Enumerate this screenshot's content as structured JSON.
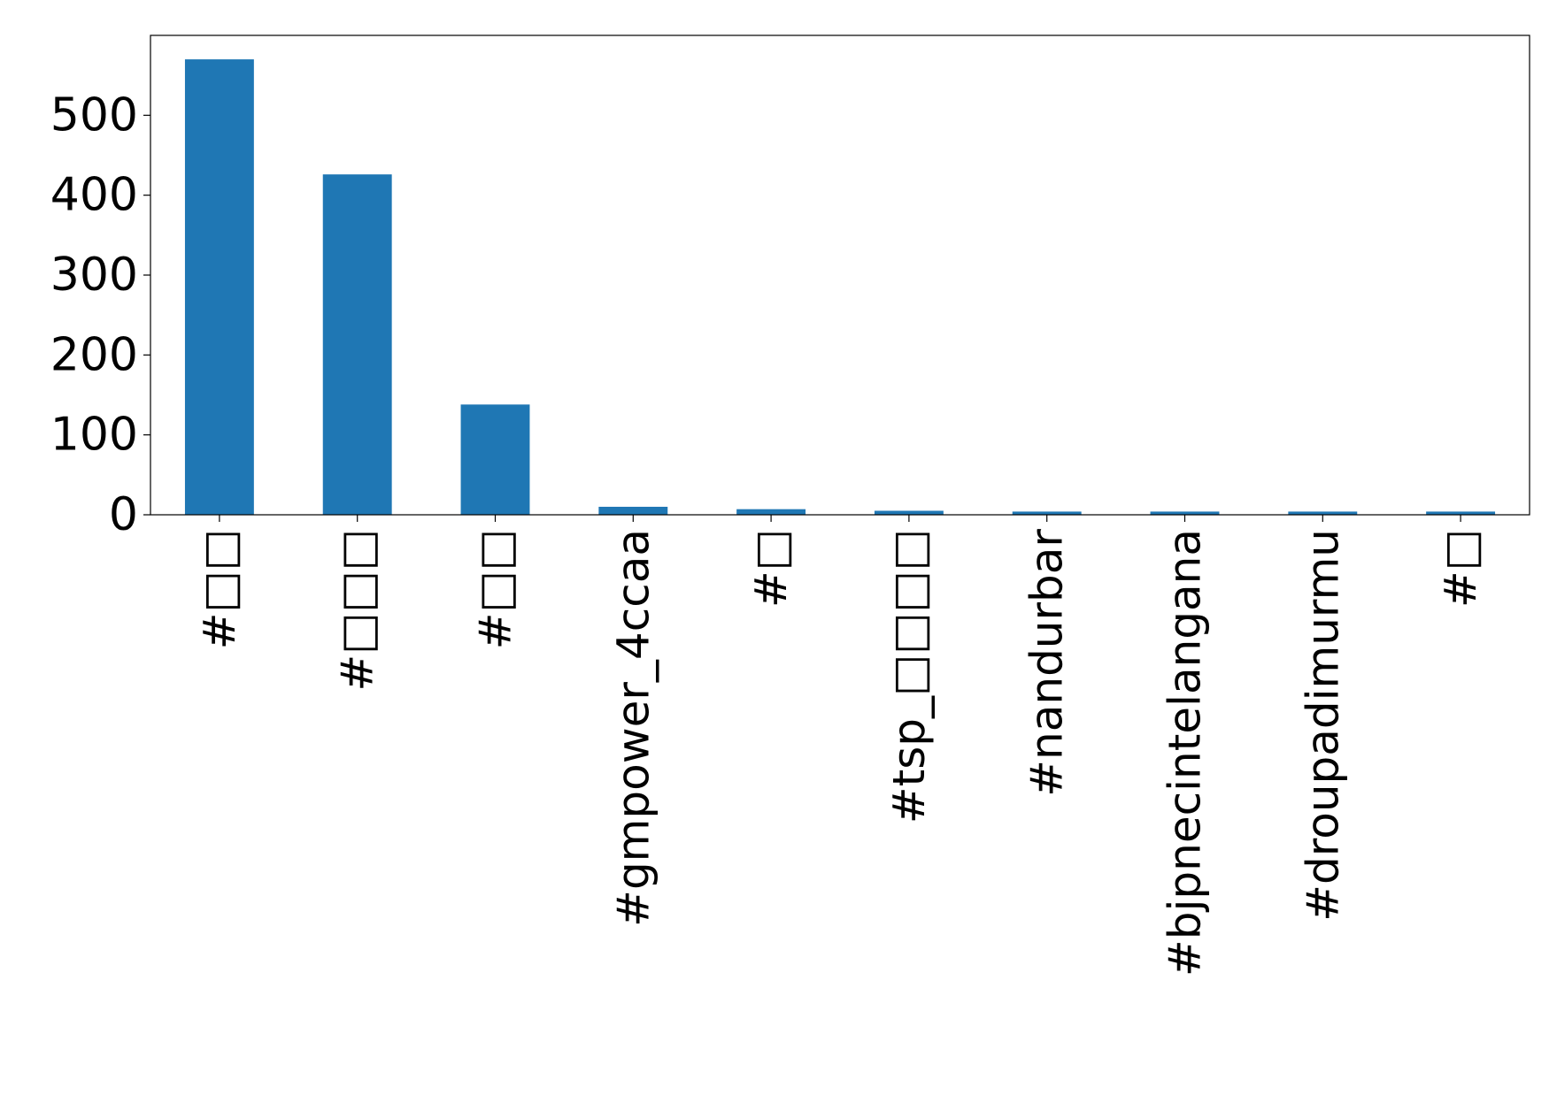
{
  "chart_data": {
    "type": "bar",
    "title": "",
    "xlabel": "",
    "ylabel": "",
    "categories": [
      "#□□",
      "#□□□",
      "#□□",
      "#gmpower_4ccaa",
      "#□",
      "#tsp_□□□□",
      "#nandurbar",
      "#bjpnecintelangana",
      "#droupadimurmu",
      "#□"
    ],
    "values": [
      570,
      426,
      138,
      10,
      7,
      5,
      4,
      4,
      4,
      4
    ],
    "ylim": [
      0,
      600
    ],
    "yticks": [
      0,
      100,
      200,
      300,
      400,
      500
    ],
    "bar_color": "#1f77b4",
    "grid": false,
    "legend": "none"
  }
}
